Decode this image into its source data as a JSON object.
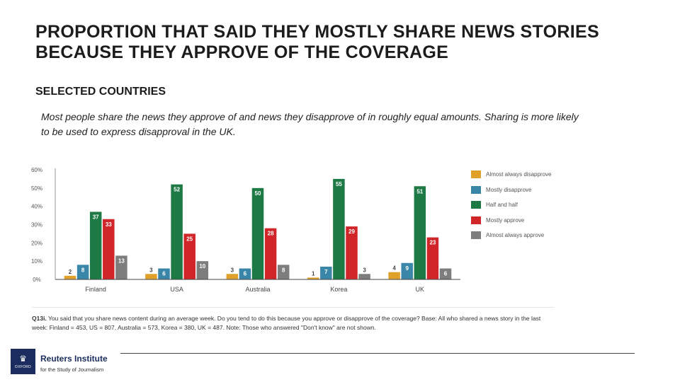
{
  "slide": {
    "title": "PROPORTION THAT SAID THEY MOSTLY SHARE NEWS STORIES BECAUSE THEY APPROVE OF THE COVERAGE",
    "subtitle": "SELECTED COUNTRIES",
    "description": "Most people share the news they approve of and news they disapprove of in roughly equal amounts. Sharing is more likely to be used to express disapproval in the UK."
  },
  "colors": {
    "almost_always_disapprove": "#e0a12b",
    "mostly_disapprove": "#3a86a8",
    "half_and_half": "#1e7a45",
    "mostly_approve": "#d0262a",
    "almost_always_approve": "#7d7d7d"
  },
  "chart_data": {
    "type": "bar",
    "categories": [
      "Finland",
      "USA",
      "Australia",
      "Korea",
      "UK"
    ],
    "series": [
      {
        "name": "Almost always disapprove",
        "values": [
          2,
          3,
          3,
          1,
          4
        ]
      },
      {
        "name": "Mostly disapprove",
        "values": [
          8,
          6,
          6,
          7,
          9
        ]
      },
      {
        "name": "Half and half",
        "values": [
          37,
          52,
          50,
          55,
          51
        ]
      },
      {
        "name": "Mostly approve",
        "values": [
          33,
          25,
          28,
          29,
          23
        ]
      },
      {
        "name": "Almost always approve",
        "values": [
          13,
          10,
          8,
          3,
          6
        ]
      }
    ],
    "yticks": [
      "0%",
      "10%",
      "20%",
      "30%",
      "40%",
      "50%",
      "60%"
    ],
    "ylim": [
      0,
      60
    ],
    "grid": false,
    "legend": "right"
  },
  "note": {
    "question": "Q13i.",
    "text": "You said that you share news content during an average week. Do you tend to do this because you approve or disapprove of the coverage? Base: All who shared a news story in the last week: Finland = 453, US = 807, Australia = 573, Korea = 380, UK = 487. Note: Those who answered \"Don't know\" are not shown."
  },
  "footer": {
    "logo_text": "OXFORD",
    "institute_name": "Reuters Institute",
    "institute_tagline": "for the Study of Journalism"
  }
}
